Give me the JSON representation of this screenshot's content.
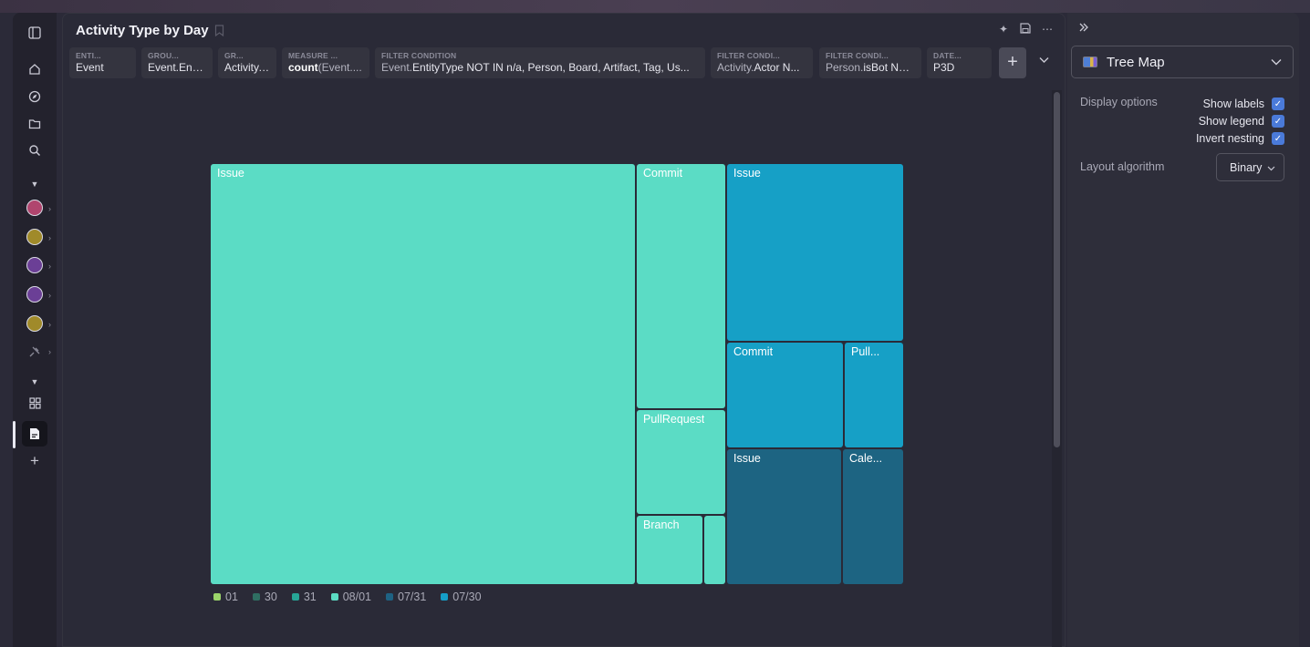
{
  "header": {
    "title": "Activity Type by Day"
  },
  "chips": [
    {
      "label": "ENTI...",
      "value_plain": "Event",
      "value_bold": "",
      "value_dim": ""
    },
    {
      "label": "GROU...",
      "value_plain": "Event.Enti...",
      "value_bold": "",
      "value_dim": ""
    },
    {
      "label": "GR...",
      "value_plain": "Activity....",
      "value_bold": "",
      "value_dim": ""
    },
    {
      "label": "MEASURE ...",
      "value_plain": "count",
      "value_bold": "",
      "value_dim": "(Event...."
    },
    {
      "label": "FILTER CONDITION",
      "value_plain": "Event.",
      "value_bold": "EntityType NOT IN n/a, Person, Board, Artifact, Tag, Us...",
      "value_dim": ""
    },
    {
      "label": "FILTER CONDI...",
      "value_plain": "Activity.",
      "value_bold": "Actor N...",
      "value_dim": ""
    },
    {
      "label": "FILTER CONDI...",
      "value_plain": "Person.",
      "value_bold": "isBot NO...",
      "value_dim": ""
    },
    {
      "label": "DATE...",
      "value_plain": "P3D",
      "value_bold": "",
      "value_dim": ""
    }
  ],
  "chart_data": {
    "type": "treemap",
    "cells": [
      {
        "label": "Issue",
        "group": "08/01"
      },
      {
        "label": "Commit",
        "group": "08/01"
      },
      {
        "label": "PullRequest",
        "group": "08/01"
      },
      {
        "label": "Branch",
        "group": "08/01"
      },
      {
        "label": "",
        "group": "08/01"
      },
      {
        "label": "Issue",
        "group": "07/30"
      },
      {
        "label": "Commit",
        "group": "07/30"
      },
      {
        "label": "Pull...",
        "group": "07/30"
      },
      {
        "label": "Issue",
        "group": "07/31"
      },
      {
        "label": "Cale...",
        "group": "07/31"
      }
    ],
    "legend": [
      {
        "label": "01",
        "color": "#9bd46a"
      },
      {
        "label": "30",
        "color": "#2f6f62"
      },
      {
        "label": "31",
        "color": "#27a596"
      },
      {
        "label": "08/01",
        "color": "#5cdcc4"
      },
      {
        "label": "07/31",
        "color": "#1e6283"
      },
      {
        "label": "07/30",
        "color": "#159ec8"
      }
    ],
    "colors": {
      "08/01": "#5bdcc5",
      "07/30": "#16a0c6",
      "07/31": "#1d6482"
    }
  },
  "side": {
    "viz_type": "Tree Map",
    "display_options_title": "Display options",
    "options": [
      {
        "label": "Show labels",
        "checked": true
      },
      {
        "label": "Show legend",
        "checked": true
      },
      {
        "label": "Invert nesting",
        "checked": true
      }
    ],
    "layout_label": "Layout algorithm",
    "layout_value": "Binary"
  }
}
